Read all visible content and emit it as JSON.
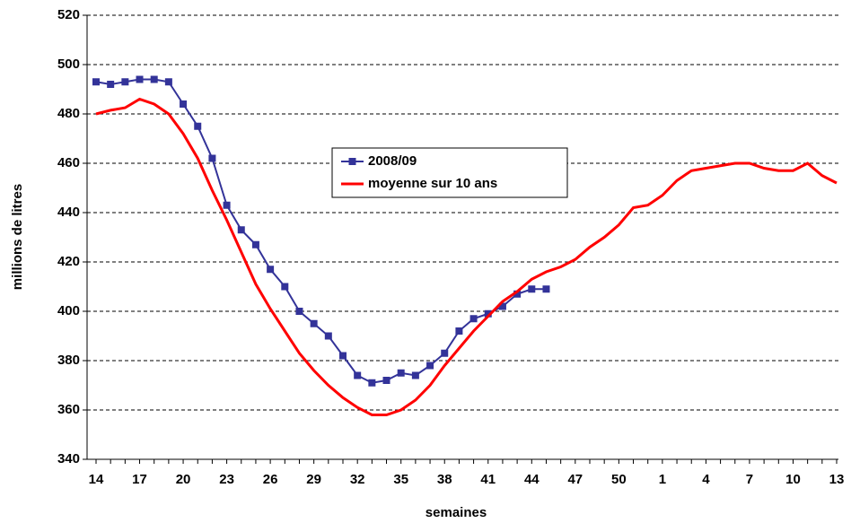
{
  "chart_data": {
    "type": "line",
    "x_label": "semaines",
    "y_label": "millions de litres",
    "categories": [
      14,
      null,
      null,
      17,
      null,
      null,
      20,
      null,
      null,
      23,
      null,
      null,
      26,
      null,
      null,
      29,
      null,
      null,
      32,
      null,
      null,
      35,
      null,
      null,
      38,
      null,
      null,
      41,
      null,
      null,
      44,
      null,
      null,
      47,
      null,
      null,
      50,
      null,
      null,
      1,
      null,
      null,
      4,
      null,
      null,
      7,
      null,
      null,
      10,
      null,
      null,
      13
    ],
    "series": [
      {
        "name": "2008/09",
        "color": "#333399",
        "marker": "square",
        "values": [
          493,
          492,
          493,
          494,
          494,
          493,
          484,
          475,
          462,
          443,
          433,
          427,
          417,
          410,
          400,
          395,
          390,
          382,
          374,
          371,
          372,
          375,
          374,
          378,
          383,
          392,
          397,
          399,
          402,
          407,
          409,
          409,
          null,
          null,
          null,
          null,
          null,
          null,
          null,
          null,
          null,
          null,
          null,
          null,
          null,
          null,
          null,
          null,
          null,
          null,
          null,
          null
        ]
      },
      {
        "name": "moyenne sur 10 ans",
        "color": "#ff0000",
        "values": [
          480,
          481.5,
          482.5,
          486,
          484,
          480,
          472,
          462,
          449,
          437,
          424,
          411,
          401,
          392,
          383,
          376,
          370,
          365,
          361,
          358,
          358,
          360,
          364,
          370,
          378,
          385,
          392,
          398,
          404,
          408,
          413,
          416,
          418,
          421,
          426,
          430,
          435,
          442,
          443,
          447,
          453,
          457,
          458,
          459,
          460,
          460,
          458,
          457,
          457,
          460,
          455,
          452
        ]
      }
    ],
    "ylim": [
      340,
      520
    ],
    "yticks": [
      340,
      360,
      380,
      400,
      420,
      440,
      460,
      480,
      500,
      520
    ],
    "grid": true
  }
}
